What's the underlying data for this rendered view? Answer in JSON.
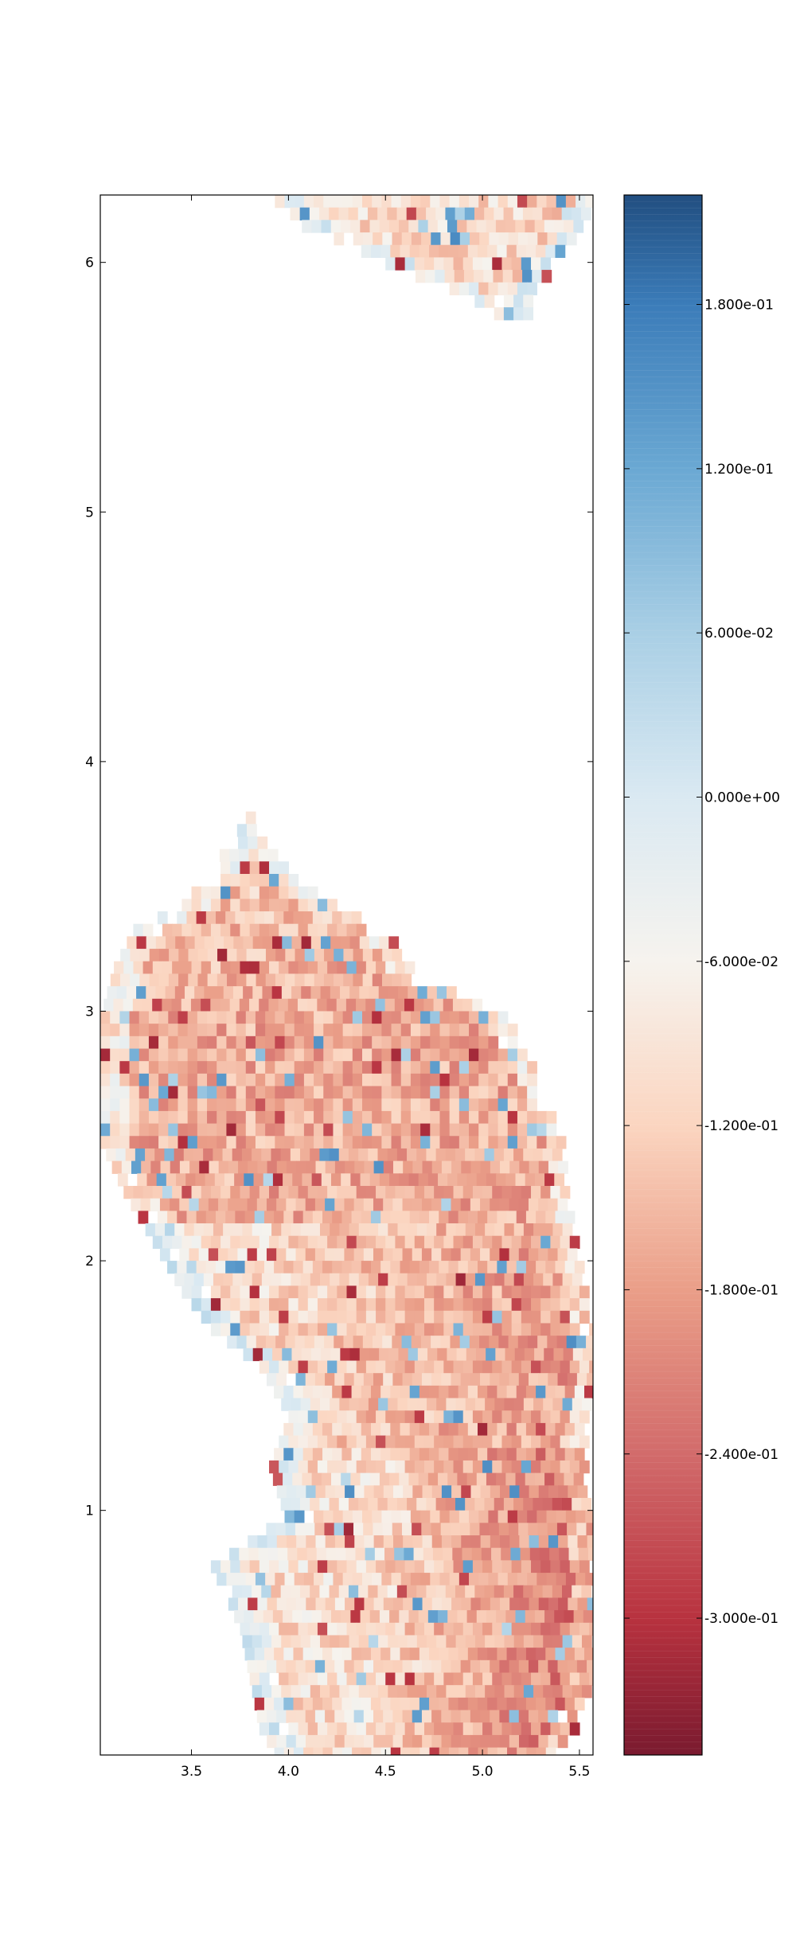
{
  "chart_data": {
    "type": "heatmap",
    "title": "",
    "xlabel": "",
    "ylabel": "",
    "xlim": [
      3.03,
      5.57
    ],
    "ylim": [
      0.02,
      6.27
    ],
    "x_ticks": [
      3.5,
      4.0,
      4.5,
      5.0,
      5.5
    ],
    "x_tick_labels": [
      "3.5",
      "4.0",
      "4.5",
      "5.0",
      "5.5"
    ],
    "y_ticks": [
      1,
      2,
      3,
      4,
      5,
      6
    ],
    "y_tick_labels": [
      "1",
      "2",
      "3",
      "4",
      "5",
      "6"
    ],
    "grid": false,
    "cell_size": {
      "dx": 0.05,
      "dy": 0.05
    },
    "colorbar": {
      "colormap": "RdBu",
      "vmin": -0.35,
      "vmax": 0.22,
      "ticks": [
        0.18,
        0.12,
        0.06,
        0.0,
        -0.06,
        -0.12,
        -0.18,
        -0.24,
        -0.3
      ],
      "tick_labels": [
        "1.800e-01",
        "1.200e-01",
        "6.000e-02",
        "0.000e+00",
        "-6.000e-02",
        "-1.200e-01",
        "-1.800e-01",
        "-2.400e-01",
        "-3.000e-01"
      ]
    },
    "stops": [
      {
        "v": -0.35,
        "color": "#7a1a2f"
      },
      {
        "v": -0.3,
        "color": "#b8323f"
      },
      {
        "v": -0.24,
        "color": "#d26b6b"
      },
      {
        "v": -0.18,
        "color": "#ea9e88"
      },
      {
        "v": -0.12,
        "color": "#fbd5c0"
      },
      {
        "v": -0.06,
        "color": "#f6f3ee"
      },
      {
        "v": 0.0,
        "color": "#dae9f2"
      },
      {
        "v": 0.06,
        "color": "#a9cfe5"
      },
      {
        "v": 0.12,
        "color": "#6aa8d3"
      },
      {
        "v": 0.18,
        "color": "#3b7cb9"
      },
      {
        "v": 0.22,
        "color": "#214e80"
      }
    ],
    "regions": [
      {
        "name": "upper-patch",
        "y_range": [
          5.8,
          6.27
        ],
        "outline": [
          [
            6.27,
            3.93,
            5.55
          ],
          [
            6.2,
            3.97,
            5.5
          ],
          [
            6.1,
            4.3,
            5.45
          ],
          [
            6.0,
            4.55,
            5.35
          ],
          [
            5.9,
            4.9,
            5.25
          ],
          [
            5.8,
            5.1,
            5.2
          ]
        ]
      },
      {
        "name": "main-patch",
        "y_range": [
          0.02,
          3.8
        ],
        "outline": [
          [
            3.8,
            3.78,
            3.82
          ],
          [
            3.6,
            3.6,
            3.95
          ],
          [
            3.45,
            3.45,
            4.2
          ],
          [
            3.35,
            3.2,
            4.5
          ],
          [
            3.2,
            3.1,
            4.6
          ],
          [
            3.0,
            3.03,
            5.1
          ],
          [
            2.8,
            3.03,
            5.25
          ],
          [
            2.5,
            3.03,
            5.4
          ],
          [
            2.3,
            3.15,
            5.42
          ],
          [
            2.1,
            3.3,
            5.45
          ],
          [
            1.9,
            3.45,
            5.5
          ],
          [
            1.75,
            3.6,
            5.55
          ],
          [
            1.6,
            3.85,
            5.57
          ],
          [
            1.4,
            4.0,
            5.52
          ],
          [
            1.2,
            3.9,
            5.5
          ],
          [
            1.0,
            3.98,
            5.55
          ],
          [
            0.8,
            3.6,
            5.55
          ],
          [
            0.55,
            3.75,
            5.55
          ],
          [
            0.35,
            3.8,
            5.55
          ],
          [
            0.15,
            3.85,
            5.45
          ],
          [
            0.02,
            3.95,
            5.3
          ]
        ]
      }
    ]
  }
}
